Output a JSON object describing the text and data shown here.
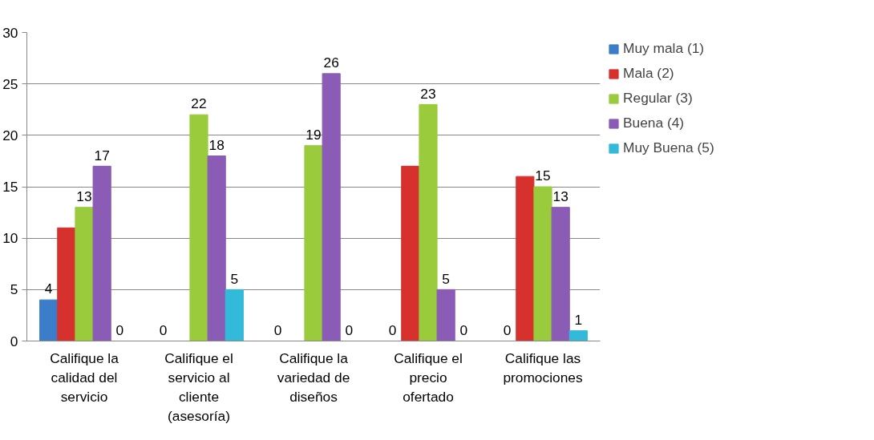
{
  "chart_data": {
    "type": "bar",
    "categories": [
      "Califique la calidad del servicio",
      "Califique el servicio al cliente (asesoría)",
      "Califique la variedad de diseños",
      "Califique el precio ofertado",
      "Califique las promociones"
    ],
    "series": [
      {
        "name": "Muy mala (1)",
        "color": "#3b7dc8",
        "values": [
          4,
          0,
          0,
          0,
          0
        ],
        "value_labels": [
          "4",
          "0",
          "0",
          "0",
          "0"
        ]
      },
      {
        "name": "Mala (2)",
        "color": "#d7312d",
        "values": [
          11,
          0,
          0,
          17,
          16
        ],
        "value_labels": [
          null,
          null,
          null,
          null,
          null
        ]
      },
      {
        "name": "Regular (3)",
        "color": "#9acb3c",
        "values": [
          13,
          22,
          19,
          23,
          15
        ],
        "value_labels": [
          "13",
          "22",
          "19",
          "23",
          "15"
        ]
      },
      {
        "name": "Buena (4)",
        "color": "#8b5cb5",
        "values": [
          17,
          18,
          26,
          5,
          13
        ],
        "value_labels": [
          "17",
          "18",
          "26",
          "5",
          "13"
        ]
      },
      {
        "name": "Muy Buena (5)",
        "color": "#33b9d9",
        "values": [
          0,
          5,
          0,
          0,
          1
        ],
        "value_labels": [
          "0",
          "5",
          "0",
          "0",
          "1"
        ]
      }
    ],
    "ylim": [
      0,
      30
    ],
    "yticks": [
      0,
      5,
      10,
      15,
      20,
      25,
      30
    ],
    "grid": "y",
    "legend": "right"
  }
}
